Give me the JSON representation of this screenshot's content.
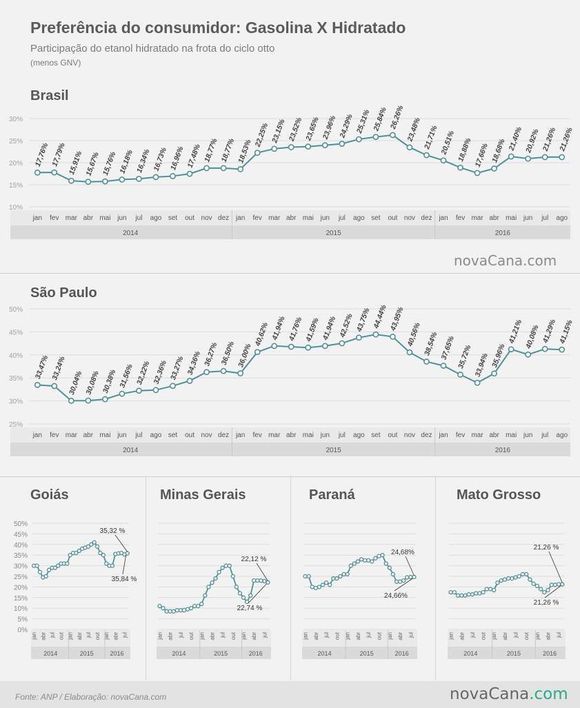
{
  "header": {
    "title": "Preferência do consumidor: Gasolina X Hidratado",
    "subtitle": "Participação do etanol hidratado na frota do ciclo otto",
    "note": "(menos GNV)"
  },
  "months": [
    "jan",
    "fev",
    "mar",
    "abr",
    "mai",
    "jun",
    "jul",
    "ago",
    "set",
    "out",
    "nov",
    "dez",
    "jan",
    "fev",
    "mar",
    "abr",
    "mai",
    "jun",
    "jul",
    "ago",
    "set",
    "out",
    "nov",
    "dez",
    "jan",
    "fev",
    "mar",
    "abr",
    "mai",
    "jun",
    "jul",
    "ago"
  ],
  "years": [
    "2014",
    "2015",
    "2016"
  ],
  "small_months": [
    "jan",
    "abr",
    "jul",
    "out",
    "jan",
    "abr",
    "jul",
    "out",
    "jan",
    "abr",
    "jul"
  ],
  "logo": {
    "text": "nova",
    "brand": "Cana",
    "com": ".com"
  },
  "footer": {
    "source": "Fonte: ANP  / Elaboração: novaCana.com"
  },
  "colors": {
    "line": "#4e9097",
    "marker_fill": "#ffffff",
    "brand_accent": "#2aa88e"
  },
  "chart_data": [
    {
      "type": "line",
      "title": "Brasil",
      "ylim": [
        10,
        30
      ],
      "y_ticks": [
        "10%",
        "15%",
        "20%",
        "25%",
        "30%"
      ],
      "values": [
        17.76,
        17.79,
        15.91,
        15.67,
        15.76,
        16.18,
        16.34,
        16.73,
        16.96,
        17.48,
        18.77,
        18.77,
        18.53,
        22.25,
        23.15,
        23.52,
        23.65,
        23.96,
        24.29,
        25.31,
        25.84,
        26.26,
        23.48,
        21.71,
        20.51,
        18.88,
        17.66,
        18.68,
        21.4,
        20.92,
        21.26,
        21.26
      ],
      "labels": [
        "17,76%",
        "17,79%",
        "15,91%",
        "15,67%",
        "15,76%",
        "16,18%",
        "16,34%",
        "16,73%",
        "16,96%",
        "17,48%",
        "18,77%",
        "18,77%",
        "18,53%",
        "22,25%",
        "23,15%",
        "23,52%",
        "23,65%",
        "23,96%",
        "24,29%",
        "25,31%",
        "25,84%",
        "26,26%",
        "23,48%",
        "21,71%",
        "20,51%",
        "18,88%",
        "17,66%",
        "18,68%",
        "21,40%",
        "20,92%",
        "21,26%",
        "21,26%"
      ]
    },
    {
      "type": "line",
      "title": "São Paulo",
      "ylim": [
        25,
        50
      ],
      "y_ticks": [
        "25%",
        "30%",
        "35%",
        "40%",
        "45%",
        "50%"
      ],
      "values": [
        33.47,
        33.24,
        30.04,
        30.08,
        30.38,
        31.56,
        32.22,
        32.36,
        33.27,
        34.36,
        36.27,
        36.5,
        36.0,
        40.62,
        41.94,
        41.76,
        41.59,
        41.94,
        42.52,
        43.75,
        44.44,
        43.95,
        40.56,
        38.54,
        37.65,
        35.72,
        33.94,
        35.96,
        41.21,
        40.08,
        41.29,
        41.15
      ],
      "labels": [
        "33,47%",
        "33,24%",
        "30,04%",
        "30,08%",
        "30,38%",
        "31,56%",
        "32,22%",
        "32,36%",
        "33,27%",
        "34,36%",
        "36,27%",
        "36,50%",
        "36,00%",
        "40,62%",
        "41,94%",
        "41,76%",
        "41,59%",
        "41,94%",
        "42,52%",
        "43,75%",
        "44,44%",
        "43,95%",
        "40,56%",
        "38,54%",
        "37,65%",
        "35,72%",
        "33,94%",
        "35,96%",
        "41,21%",
        "40,08%",
        "41,29%",
        "41,15%"
      ]
    },
    {
      "type": "line",
      "title": "Goiás",
      "ylim": [
        0,
        50
      ],
      "y_ticks": [
        "0%",
        "5%",
        "10%",
        "15%",
        "20%",
        "25%",
        "30%",
        "35%",
        "40%",
        "45%",
        "50%"
      ],
      "values": [
        30,
        30,
        27,
        24.5,
        25,
        28,
        29,
        29,
        30,
        31,
        31,
        31,
        35,
        36,
        36,
        37,
        38,
        38.5,
        39,
        40,
        41,
        39,
        36,
        35,
        31,
        30,
        30,
        35.5,
        35.8,
        36,
        35.3,
        35.84
      ],
      "callouts": [
        "35,32 %",
        "35,84 %"
      ]
    },
    {
      "type": "line",
      "title": "Minas Gerais",
      "ylim": [
        0,
        50
      ],
      "values": [
        11,
        10,
        8.5,
        8.5,
        8.5,
        9,
        9,
        9,
        9.5,
        10,
        11,
        11,
        12,
        16,
        20,
        22,
        24,
        27,
        29,
        30,
        30,
        25,
        20,
        17,
        15,
        13,
        16,
        23,
        23,
        23,
        22.74,
        22.12
      ],
      "callouts": [
        "22,12 %",
        "22,74 %"
      ]
    },
    {
      "type": "line",
      "title": "Paraná",
      "ylim": [
        0,
        50
      ],
      "values": [
        25,
        25,
        20,
        19.5,
        20,
        21,
        22,
        21,
        24,
        24,
        25,
        26,
        26,
        30,
        31,
        32,
        33,
        32.5,
        32.5,
        32,
        33.5,
        34.5,
        35,
        31,
        29,
        26,
        22.5,
        22.5,
        23,
        24.5,
        24.66,
        24.68
      ],
      "callouts": [
        "24,68%",
        "24,66%"
      ]
    },
    {
      "type": "line",
      "title": "Mato Grosso",
      "ylim": [
        0,
        50
      ],
      "values": [
        17.5,
        17.5,
        16,
        16,
        16,
        16.5,
        16.5,
        17,
        17,
        17.5,
        19,
        19,
        18.5,
        22,
        23,
        23.5,
        24,
        24,
        24.5,
        25,
        26,
        26,
        23.5,
        21.5,
        20.5,
        19,
        17.5,
        18.5,
        21,
        21,
        21.26,
        21.26
      ],
      "callouts": [
        "21,26 %",
        "21,26 %"
      ]
    }
  ]
}
